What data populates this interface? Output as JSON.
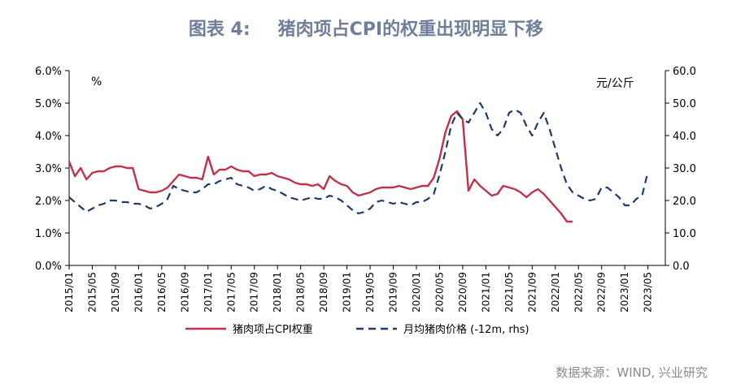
{
  "title": {
    "label": "图表 4:",
    "text": "猪肉项占CPI的权重出现明显下移"
  },
  "source": "数据来源：WIND, 兴业研究",
  "chart_data": {
    "type": "line",
    "left_unit": "%",
    "right_unit": "元/公斤",
    "y_left": {
      "min": 0,
      "max": 6,
      "ticks": [
        "0.0%",
        "1.0%",
        "2.0%",
        "3.0%",
        "4.0%",
        "5.0%",
        "6.0%"
      ]
    },
    "y_right": {
      "min": 0,
      "max": 60,
      "ticks": [
        "0.0",
        "10.0",
        "20.0",
        "30.0",
        "40.0",
        "50.0",
        "60.0"
      ]
    },
    "x_start": "2015-01",
    "x_end": "2023-08",
    "x_ticks": [
      "2015/01",
      "2015/05",
      "2015/09",
      "2016/01",
      "2016/05",
      "2016/09",
      "2017/01",
      "2017/05",
      "2017/09",
      "2018/01",
      "2018/05",
      "2018/09",
      "2019/01",
      "2019/05",
      "2019/09",
      "2020/01",
      "2020/05",
      "2020/09",
      "2021/01",
      "2021/05",
      "2021/09",
      "2022/01",
      "2022/05",
      "2022/09",
      "2023/01",
      "2023/05"
    ],
    "legend_position": "bottom",
    "series": [
      {
        "name": "猪肉项占CPI权重",
        "axis": "left",
        "color": "#c0314a",
        "style": "solid",
        "start": "2015-01",
        "values": [
          3.2,
          2.75,
          3.0,
          2.65,
          2.85,
          2.9,
          2.9,
          3.0,
          3.05,
          3.05,
          3.0,
          3.0,
          2.35,
          2.3,
          2.25,
          2.25,
          2.3,
          2.4,
          2.6,
          2.8,
          2.75,
          2.7,
          2.7,
          2.65,
          3.35,
          2.8,
          2.95,
          2.95,
          3.05,
          2.95,
          2.9,
          2.9,
          2.75,
          2.8,
          2.8,
          2.85,
          2.75,
          2.7,
          2.65,
          2.55,
          2.5,
          2.5,
          2.45,
          2.5,
          2.35,
          2.75,
          2.6,
          2.5,
          2.45,
          2.25,
          2.15,
          2.2,
          2.25,
          2.35,
          2.4,
          2.4,
          2.4,
          2.45,
          2.4,
          2.35,
          2.4,
          2.45,
          2.45,
          2.7,
          3.3,
          4.1,
          4.6,
          4.75,
          4.5,
          2.3,
          2.65,
          2.45,
          2.3,
          2.15,
          2.2,
          2.45,
          2.4,
          2.35,
          2.25,
          2.1,
          2.25,
          2.35,
          2.2,
          2.0,
          1.8,
          1.6,
          1.35,
          1.35
        ]
      },
      {
        "name": "月均猪肉价格 (-12m, rhs)",
        "axis": "right",
        "color": "#1f3a6b",
        "style": "dashed",
        "start": "2015-01",
        "values": [
          21,
          19.5,
          18,
          16.5,
          17.5,
          18.5,
          19,
          20,
          20,
          19.5,
          19.5,
          19,
          19,
          18.5,
          17.5,
          18,
          19,
          20.5,
          24.5,
          23.5,
          23,
          22.5,
          22.5,
          23.5,
          25,
          25,
          26,
          26.5,
          27,
          25,
          24.5,
          24,
          23,
          23.5,
          24.5,
          23.5,
          23,
          22,
          21,
          20.5,
          20,
          20.5,
          21,
          20.5,
          20.5,
          21.5,
          21,
          20,
          18.5,
          17,
          16,
          16.5,
          17.5,
          19.5,
          20,
          19.5,
          19,
          19.5,
          19,
          18.5,
          19.5,
          19.5,
          20.5,
          22,
          28,
          35,
          43,
          47,
          45,
          44,
          47,
          50,
          47,
          42,
          40,
          42,
          47,
          48,
          47,
          43,
          40,
          44,
          47,
          42,
          36,
          30,
          25,
          22.5,
          21.5,
          20.5,
          20,
          20.5,
          24,
          24,
          22.5,
          21,
          18.5,
          18.5,
          20.5,
          21.5,
          29
        ]
      }
    ]
  }
}
